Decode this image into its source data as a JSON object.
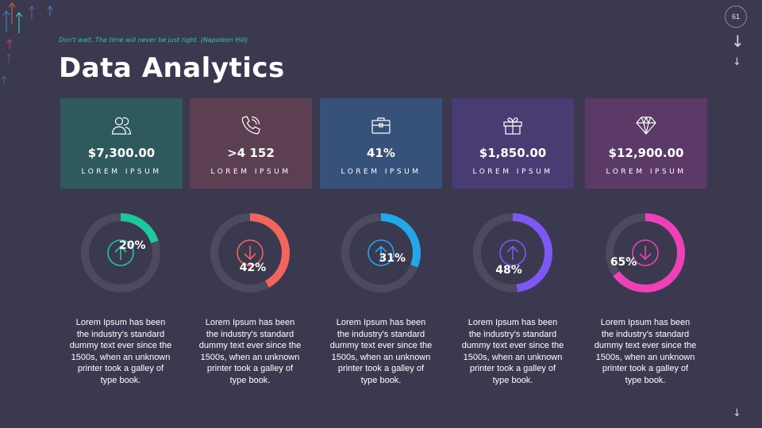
{
  "header": {
    "quote": "Don't wait. The time will never be just right. (Napoleon Hill)",
    "title": "Data Analytics",
    "page_number": "61"
  },
  "nav": {
    "down_arrow": "↓"
  },
  "cards": [
    {
      "value": "$7,300.00",
      "label": "LOREM IPSUM",
      "icon": "users-icon",
      "color": "#2e5a5e"
    },
    {
      "value": ">4 152",
      "label": "LOREM IPSUM",
      "icon": "phone-icon",
      "color": "#5c3f50"
    },
    {
      "value": "41%",
      "label": "LOREM IPSUM",
      "icon": "briefcase-icon",
      "color": "#36527a"
    },
    {
      "value": "$1,850.00",
      "label": "LOREM IPSUM",
      "icon": "gift-icon",
      "color": "#483c72"
    },
    {
      "value": "$12,900.00",
      "label": "LOREM IPSUM",
      "icon": "diamond-icon",
      "color": "#5c3a67"
    }
  ],
  "chart_data": {
    "type": "donut",
    "values": [
      20,
      42,
      31,
      48,
      65
    ],
    "labels": [
      "20%",
      "42%",
      "31%",
      "48%",
      "65%"
    ],
    "directions": [
      "up",
      "down",
      "up",
      "up",
      "down"
    ],
    "colors": [
      "#1dc99a",
      "#f0655c",
      "#22a7e8",
      "#7e57f5",
      "#f040b8"
    ],
    "track_color": "#4c4a5f"
  },
  "descriptions": [
    "Lorem Ipsum has been the industry's standard dummy text ever since the 1500s, when an unknown printer took a galley of type book.",
    "Lorem Ipsum has been the industry's standard dummy text ever since the 1500s, when an unknown printer took a galley of type book.",
    "Lorem Ipsum has been the industry's standard dummy text ever since the 1500s, when an unknown printer took a galley of type book.",
    "Lorem Ipsum has been the industry's standard dummy text ever since the 1500s, when an unknown printer took a galley of type book.",
    "Lorem Ipsum has been the industry's standard dummy text ever since the 1500s, when an unknown printer took a galley of type book."
  ]
}
